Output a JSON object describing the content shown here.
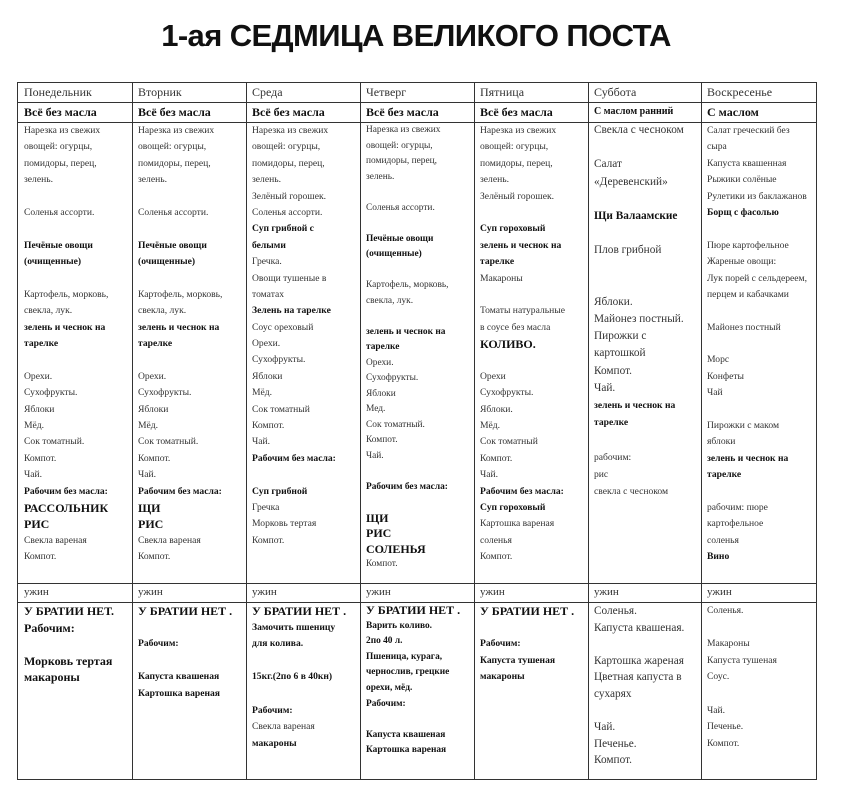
{
  "title": "1-ая СЕДМИЦА ВЕЛИКОГО ПОСТА",
  "days": [
    {
      "name": "Понедельник",
      "rule": "Всё без масла",
      "day_menu": [
        {
          "text": "Нарезка из свежих"
        },
        {
          "text": "овощей: огурцы,"
        },
        {
          "text": "помидоры, перец,"
        },
        {
          "text": "зелень."
        },
        {
          "text": ""
        },
        {
          "text": "Соленья ассорти."
        },
        {
          "text": ""
        },
        {
          "text": "Печёные овощи",
          "bold": true
        },
        {
          "text": "(очищенные)",
          "bold": true
        },
        {
          "text": ""
        },
        {
          "text": "Картофель, морковь,"
        },
        {
          "text": "свекла, лук."
        },
        {
          "text": "зелень и чеснок на",
          "bold": true
        },
        {
          "text": "тарелке",
          "bold": true
        },
        {
          "text": ""
        },
        {
          "text": "Орехи."
        },
        {
          "text": "Сухофрукты."
        },
        {
          "text": "Яблоки"
        },
        {
          "text": "Мёд."
        },
        {
          "text": "Сок томатный."
        },
        {
          "text": "Компот."
        },
        {
          "text": "Чай."
        },
        {
          "text": "Рабочим без масла:",
          "bold": true
        },
        {
          "text": "РАССОЛЬНИК",
          "bold": true,
          "big": true
        },
        {
          "text": "РИС",
          "bold": true,
          "big": true
        },
        {
          "text": "Свекла вареная"
        },
        {
          "text": "Компот."
        }
      ],
      "dinner_label": "ужин",
      "dinner": [
        {
          "text": "У БРАТИИ НЕТ.",
          "bold": true,
          "big": true
        },
        {
          "text": "Рабочим:",
          "bold": true,
          "big": true
        },
        {
          "text": ""
        },
        {
          "text": "Морковь тертая",
          "bold": true,
          "big": true
        },
        {
          "text": "макароны",
          "bold": true,
          "big": true
        }
      ]
    },
    {
      "name": "Вторник",
      "rule": "Всё без масла",
      "day_menu": [
        {
          "text": "Нарезка из свежих"
        },
        {
          "text": "овощей: огурцы,"
        },
        {
          "text": "помидоры, перец,"
        },
        {
          "text": "зелень."
        },
        {
          "text": ""
        },
        {
          "text": "Соленья ассорти."
        },
        {
          "text": ""
        },
        {
          "text": "Печёные овощи",
          "bold": true
        },
        {
          "text": "(очищенные)",
          "bold": true
        },
        {
          "text": ""
        },
        {
          "text": "Картофель, морковь,"
        },
        {
          "text": "свекла, лук."
        },
        {
          "text": "зелень и чеснок на",
          "bold": true
        },
        {
          "text": "тарелке",
          "bold": true
        },
        {
          "text": ""
        },
        {
          "text": "Орехи."
        },
        {
          "text": "Сухофрукты."
        },
        {
          "text": "Яблоки"
        },
        {
          "text": "Мёд."
        },
        {
          "text": "Сок томатный."
        },
        {
          "text": "Компот."
        },
        {
          "text": "Чай."
        },
        {
          "text": "Рабочим без масла:",
          "bold": true
        },
        {
          "text": "ЩИ",
          "bold": true,
          "big": true
        },
        {
          "text": "РИС",
          "bold": true,
          "big": true
        },
        {
          "text": "Свекла вареная"
        },
        {
          "text": "Компот."
        }
      ],
      "dinner_label": "ужин",
      "dinner": [
        {
          "text": "У БРАТИИ НЕТ .",
          "bold": true,
          "big": true
        },
        {
          "text": ""
        },
        {
          "text": "Рабочим:",
          "bold": true
        },
        {
          "text": ""
        },
        {
          "text": "Капуста квашеная",
          "bold": true
        },
        {
          "text": "Картошка вареная",
          "bold": true
        }
      ]
    },
    {
      "name": "Среда",
      "rule": "Всё без масла",
      "day_menu": [
        {
          "text": "Нарезка из свежих"
        },
        {
          "text": "овощей: огурцы,"
        },
        {
          "text": "помидоры, перец,"
        },
        {
          "text": "зелень."
        },
        {
          "text": "Зелёный горошек."
        },
        {
          "text": "Соленья ассорти."
        },
        {
          "text": "Суп грибной с",
          "bold": true
        },
        {
          "text": "белыми",
          "bold": true
        },
        {
          "text": "Гречка."
        },
        {
          "text": "Овощи тушеные в"
        },
        {
          "text": "томатах"
        },
        {
          "text": "Зелень на тарелке",
          "bold": true
        },
        {
          "text": "Соус ореховый"
        },
        {
          "text": "Орехи."
        },
        {
          "text": "Сухофрукты."
        },
        {
          "text": "Яблоки"
        },
        {
          "text": "Мёд."
        },
        {
          "text": "Сок томатный"
        },
        {
          "text": "Компот."
        },
        {
          "text": "Чай."
        },
        {
          "text": "Рабочим без масла:",
          "bold": true
        },
        {
          "text": ""
        },
        {
          "text": "Суп грибной",
          "bold": true
        },
        {
          "text": "Гречка"
        },
        {
          "text": "Морковь тертая"
        },
        {
          "text": "Компот."
        }
      ],
      "dinner_label": "ужин",
      "dinner": [
        {
          "text": "У БРАТИИ НЕТ .",
          "bold": true,
          "big": true
        },
        {
          "text": "Замочить пшеницу",
          "bold": true
        },
        {
          "text": "для колива.",
          "bold": true
        },
        {
          "text": ""
        },
        {
          "text": "15кг.(2по 6 в 40кн)",
          "bold": true
        },
        {
          "text": ""
        },
        {
          "text": "Рабочим:",
          "bold": true
        },
        {
          "text": "Свекла вареная"
        },
        {
          "text": "макароны",
          "bold": true
        }
      ]
    },
    {
      "name": "Четверг",
      "rule": "Всё без масла",
      "day_menu": [
        {
          "text": "Нарезка из свежих"
        },
        {
          "text": "овощей: огурцы,"
        },
        {
          "text": "помидоры, перец,"
        },
        {
          "text": "зелень."
        },
        {
          "text": ""
        },
        {
          "text": "Соленья ассорти."
        },
        {
          "text": ""
        },
        {
          "text": "Печёные овощи",
          "bold": true
        },
        {
          "text": "(очищенные)",
          "bold": true
        },
        {
          "text": ""
        },
        {
          "text": "Картофель, морковь,"
        },
        {
          "text": "свекла, лук."
        },
        {
          "text": ""
        },
        {
          "text": "зелень и чеснок на",
          "bold": true
        },
        {
          "text": "тарелке",
          "bold": true
        },
        {
          "text": "Орехи."
        },
        {
          "text": "Сухофрукты."
        },
        {
          "text": "Яблоки"
        },
        {
          "text": "Мед."
        },
        {
          "text": "Сок томатный."
        },
        {
          "text": "Компот."
        },
        {
          "text": "Чай."
        },
        {
          "text": ""
        },
        {
          "text": "Рабочим без масла:",
          "bold": true
        },
        {
          "text": ""
        },
        {
          "text": "ЩИ",
          "bold": true,
          "big": true
        },
        {
          "text": "РИС",
          "bold": true,
          "big": true
        },
        {
          "text": "СОЛЕНЬЯ",
          "bold": true,
          "big": true
        },
        {
          "text": "Компот."
        }
      ],
      "dinner_label": "ужин",
      "dinner": [
        {
          "text": "У БРАТИИ НЕТ .",
          "bold": true,
          "big": true
        },
        {
          "text": "Варить коливо.",
          "bold": true
        },
        {
          "text": "2по 40 л.",
          "bold": true
        },
        {
          "text": "Пшеница, курага,",
          "bold": true
        },
        {
          "text": "чернослив, грецкие",
          "bold": true
        },
        {
          "text": "орехи, мёд.",
          "bold": true
        },
        {
          "text": "Рабочим:",
          "bold": true
        },
        {
          "text": ""
        },
        {
          "text": "Капуста квашеная",
          "bold": true
        },
        {
          "text": "Картошка вареная",
          "bold": true
        }
      ]
    },
    {
      "name": "Пятница",
      "rule": "Всё без масла",
      "day_menu": [
        {
          "text": "Нарезка из свежих"
        },
        {
          "text": "овощей: огурцы,"
        },
        {
          "text": "помидоры, перец,"
        },
        {
          "text": "зелень."
        },
        {
          "text": "Зелёный горошек."
        },
        {
          "text": ""
        },
        {
          "text": "Суп гороховый",
          "bold": true
        },
        {
          "text": "зелень и чеснок на",
          "bold": true
        },
        {
          "text": "тарелке",
          "bold": true
        },
        {
          "text": "Макароны"
        },
        {
          "text": ""
        },
        {
          "text": "Томаты натуральные"
        },
        {
          "text": "в соусе без масла"
        },
        {
          "text": "КОЛИВО.",
          "bold": true,
          "big": true
        },
        {
          "text": ""
        },
        {
          "text": "Орехи"
        },
        {
          "text": "Сухофрукты."
        },
        {
          "text": "Яблоки."
        },
        {
          "text": "Мёд."
        },
        {
          "text": "Сок томатный"
        },
        {
          "text": "Компот."
        },
        {
          "text": "Чай."
        },
        {
          "text": "Рабочим без масла:",
          "bold": true
        },
        {
          "text": "Суп гороховый",
          "bold": true
        },
        {
          "text": "Картошка вареная"
        },
        {
          "text": "соленья"
        },
        {
          "text": "Компот."
        }
      ],
      "dinner_label": "ужин",
      "dinner": [
        {
          "text": "У БРАТИИ НЕТ .",
          "bold": true,
          "big": true
        },
        {
          "text": ""
        },
        {
          "text": "Рабочим:",
          "bold": true
        },
        {
          "text": "Капуста тушеная",
          "bold": true
        },
        {
          "text": "макароны",
          "bold": true
        }
      ]
    },
    {
      "name": "Суббота",
      "rule": "С маслом ранний",
      "day_menu": [
        {
          "text": "Свекла с чесноком"
        },
        {
          "text": ""
        },
        {
          "text": "Салат"
        },
        {
          "text": "«Деревенский»"
        },
        {
          "text": ""
        },
        {
          "text": "Щи Валаамские",
          "bold": true
        },
        {
          "text": ""
        },
        {
          "text": "Плов грибной"
        },
        {
          "text": ""
        },
        {
          "text": ""
        },
        {
          "text": "Яблоки."
        },
        {
          "text": "Майонез постный."
        },
        {
          "text": "Пирожки с"
        },
        {
          "text": "картошкой"
        },
        {
          "text": "Компот."
        },
        {
          "text": "Чай."
        },
        {
          "text": "зелень и чеснок на",
          "bold": true,
          "small": true
        },
        {
          "text": "тарелке",
          "bold": true,
          "small": true
        },
        {
          "text": ""
        },
        {
          "text": "рабочим:",
          "small": true
        },
        {
          "text": "рис",
          "small": true
        },
        {
          "text": "свекла с чесноком",
          "small": true
        }
      ],
      "dinner_label": "ужин",
      "dinner": [
        {
          "text": "Соленья."
        },
        {
          "text": "Капуста квашеная."
        },
        {
          "text": ""
        },
        {
          "text": "Картошка жареная"
        },
        {
          "text": "Цветная капуста в"
        },
        {
          "text": "сухарях"
        },
        {
          "text": ""
        },
        {
          "text": "Чай."
        },
        {
          "text": "Печенье."
        },
        {
          "text": "Компот."
        }
      ]
    },
    {
      "name": "Воскресенье",
      "rule": "С маслом",
      "day_menu": [
        {
          "text": "Салат греческий без"
        },
        {
          "text": "сыра"
        },
        {
          "text": "Капуста квашенная"
        },
        {
          "text": "Рыжики солёные"
        },
        {
          "text": "Рулетики из баклажанов"
        },
        {
          "text": "Борщ с фасолью",
          "bold": true
        },
        {
          "text": ""
        },
        {
          "text": "Пюре картофельное"
        },
        {
          "text": "Жареные овощи:"
        },
        {
          "text": "Лук порей с сельдереем,"
        },
        {
          "text": "перцем и кабачками"
        },
        {
          "text": ""
        },
        {
          "text": "Майонез постный"
        },
        {
          "text": ""
        },
        {
          "text": "Морс"
        },
        {
          "text": "Конфеты"
        },
        {
          "text": "Чай"
        },
        {
          "text": ""
        },
        {
          "text": "Пирожки с маком"
        },
        {
          "text": "яблоки"
        },
        {
          "text": "зелень и чеснок на",
          "bold": true
        },
        {
          "text": "тарелке",
          "bold": true
        },
        {
          "text": ""
        },
        {
          "text": "рабочим: пюре"
        },
        {
          "text": "картофельное"
        },
        {
          "text": "соленья"
        },
        {
          "text": "Вино",
          "bold": true
        }
      ],
      "dinner_label": "ужин",
      "dinner": [
        {
          "text": "Соленья."
        },
        {
          "text": ""
        },
        {
          "text": "Макароны"
        },
        {
          "text": "Капуста тушеная"
        },
        {
          "text": "Соус."
        },
        {
          "text": ""
        },
        {
          "text": "Чай."
        },
        {
          "text": "Печенье."
        },
        {
          "text": "Компот."
        }
      ]
    }
  ]
}
